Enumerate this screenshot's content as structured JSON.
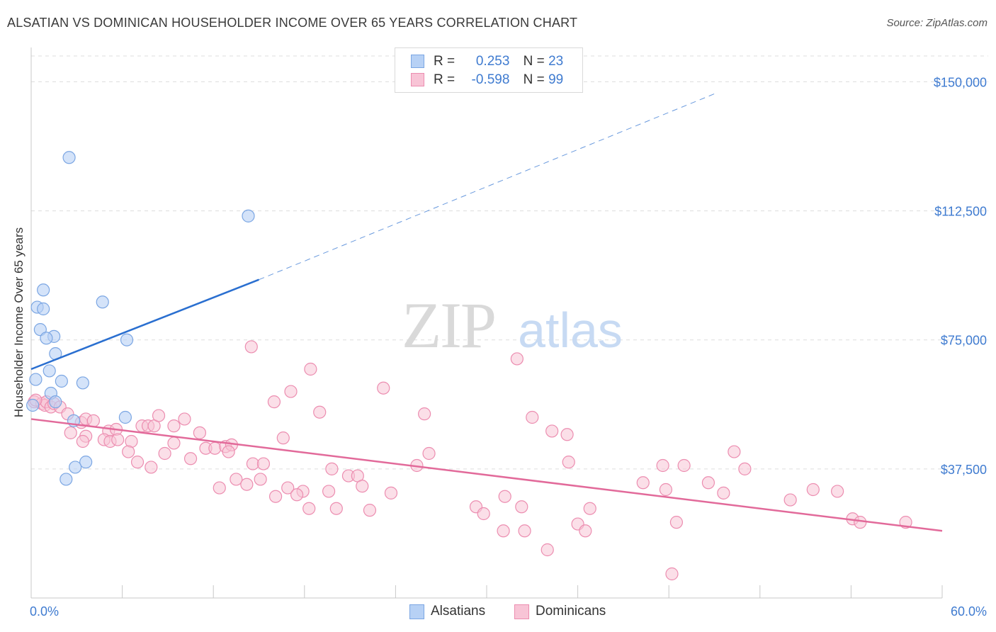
{
  "title": "ALSATIAN VS DOMINICAN HOUSEHOLDER INCOME OVER 65 YEARS CORRELATION CHART",
  "source": "Source: ZipAtlas.com",
  "watermark": {
    "zip": "ZIP",
    "atlas": "atlas"
  },
  "legend_top": {
    "series1": {
      "r_label": "R =",
      "r_value": "0.253",
      "n_label": "N =",
      "n_value": "23"
    },
    "series2": {
      "r_label": "R =",
      "r_value": "-0.598",
      "n_label": "N =",
      "n_value": "99"
    }
  },
  "legend_bottom": {
    "series1": "Alsatians",
    "series2": "Dominicans"
  },
  "colors": {
    "alsatian_fill": "#b7d1f5",
    "alsatian_stroke": "#7ba6e3",
    "alsatian_line": "#2a6fd0",
    "dominican_fill": "#f8c4d6",
    "dominican_stroke": "#ec8db0",
    "dominican_line": "#e26a9a",
    "tick_label": "#3f7bd0",
    "grid": "#dddddd"
  },
  "chart_data": {
    "type": "scatter",
    "title": "ALSATIAN VS DOMINICAN HOUSEHOLDER INCOME OVER 65 YEARS CORRELATION CHART",
    "xlabel": "",
    "ylabel": "Householder Income Over 65 years",
    "xlim": [
      0,
      60
    ],
    "ylim": [
      0,
      157500
    ],
    "x_tick_labels": [
      "0.0%",
      "60.0%"
    ],
    "y_ticks": [
      37500,
      75000,
      112500,
      150000
    ],
    "y_tick_labels": [
      "$37,500",
      "$75,000",
      "$112,500",
      "$150,000"
    ],
    "grid": true,
    "legend_position": "top-center",
    "series": [
      {
        "name": "Alsatians",
        "r": 0.253,
        "n": 23,
        "points": [
          [
            2.5,
            128000
          ],
          [
            14.3,
            111000
          ],
          [
            0.8,
            89500
          ],
          [
            4.7,
            86000
          ],
          [
            0.4,
            84500
          ],
          [
            0.8,
            84000
          ],
          [
            0.6,
            78000
          ],
          [
            1.5,
            76000
          ],
          [
            1.0,
            75500
          ],
          [
            6.3,
            75000
          ],
          [
            1.6,
            71000
          ],
          [
            1.2,
            66000
          ],
          [
            0.3,
            63500
          ],
          [
            2.0,
            63000
          ],
          [
            3.4,
            62500
          ],
          [
            1.3,
            59500
          ],
          [
            1.6,
            57000
          ],
          [
            0.1,
            56000
          ],
          [
            6.2,
            52500
          ],
          [
            2.8,
            51500
          ],
          [
            3.6,
            39500
          ],
          [
            2.9,
            38000
          ],
          [
            2.3,
            34500
          ]
        ],
        "trend": {
          "x": [
            0,
            15
          ],
          "y": [
            66500,
            92500
          ]
        },
        "trend_extension": {
          "x": [
            15,
            45
          ],
          "y": [
            92500,
            146500
          ]
        }
      },
      {
        "name": "Dominicans",
        "r": -0.598,
        "n": 99,
        "points": [
          [
            0.2,
            57000
          ],
          [
            0.7,
            56500
          ],
          [
            0.9,
            56000
          ],
          [
            1.0,
            57000
          ],
          [
            1.3,
            55500
          ],
          [
            1.5,
            56500
          ],
          [
            1.9,
            55500
          ],
          [
            2.4,
            53500
          ],
          [
            3.3,
            51000
          ],
          [
            3.6,
            52000
          ],
          [
            4.1,
            51500
          ],
          [
            2.6,
            48000
          ],
          [
            3.6,
            47000
          ],
          [
            5.1,
            48500
          ],
          [
            5.6,
            49000
          ],
          [
            4.8,
            46000
          ],
          [
            5.2,
            45500
          ],
          [
            5.7,
            46000
          ],
          [
            6.6,
            45500
          ],
          [
            7.3,
            50000
          ],
          [
            7.7,
            50000
          ],
          [
            8.1,
            50000
          ],
          [
            8.4,
            53000
          ],
          [
            9.4,
            50000
          ],
          [
            10.1,
            52000
          ],
          [
            11.1,
            48000
          ],
          [
            6.4,
            42500
          ],
          [
            7.0,
            39500
          ],
          [
            7.9,
            38000
          ],
          [
            8.8,
            42000
          ],
          [
            9.4,
            45000
          ],
          [
            10.5,
            40500
          ],
          [
            11.5,
            43500
          ],
          [
            12.1,
            43500
          ],
          [
            12.8,
            44000
          ],
          [
            13.2,
            44500
          ],
          [
            13.0,
            42500
          ],
          [
            14.6,
            39000
          ],
          [
            15.3,
            39000
          ],
          [
            13.5,
            34500
          ],
          [
            14.2,
            33000
          ],
          [
            15.1,
            34500
          ],
          [
            12.4,
            32000
          ],
          [
            16.1,
            29500
          ],
          [
            16.9,
            32000
          ],
          [
            17.9,
            31000
          ],
          [
            17.5,
            30000
          ],
          [
            18.3,
            26000
          ],
          [
            14.5,
            73000
          ],
          [
            16.0,
            57000
          ],
          [
            16.6,
            46500
          ],
          [
            17.1,
            60000
          ],
          [
            18.4,
            66500
          ],
          [
            19.0,
            54000
          ],
          [
            19.6,
            31000
          ],
          [
            20.1,
            26000
          ],
          [
            19.8,
            37500
          ],
          [
            20.9,
            35500
          ],
          [
            21.5,
            35500
          ],
          [
            21.8,
            32500
          ],
          [
            22.3,
            25500
          ],
          [
            23.2,
            61000
          ],
          [
            23.7,
            30500
          ],
          [
            25.4,
            38500
          ],
          [
            26.2,
            42000
          ],
          [
            25.9,
            53500
          ],
          [
            29.3,
            26500
          ],
          [
            29.8,
            24500
          ],
          [
            31.1,
            19500
          ],
          [
            31.2,
            29500
          ],
          [
            32.3,
            26500
          ],
          [
            32.0,
            69500
          ],
          [
            32.5,
            19500
          ],
          [
            33.0,
            52500
          ],
          [
            34.3,
            48500
          ],
          [
            35.3,
            47500
          ],
          [
            34.0,
            14000
          ],
          [
            35.4,
            39500
          ],
          [
            36.0,
            21500
          ],
          [
            36.5,
            19500
          ],
          [
            36.8,
            26000
          ],
          [
            40.3,
            33500
          ],
          [
            41.6,
            38500
          ],
          [
            41.8,
            31500
          ],
          [
            42.5,
            22000
          ],
          [
            43.0,
            38500
          ],
          [
            42.2,
            7000
          ],
          [
            44.6,
            33500
          ],
          [
            45.6,
            30500
          ],
          [
            46.3,
            42500
          ],
          [
            47.0,
            37500
          ],
          [
            50.0,
            28500
          ],
          [
            51.5,
            31500
          ],
          [
            53.1,
            31000
          ],
          [
            54.1,
            23000
          ],
          [
            54.6,
            22000
          ],
          [
            57.6,
            22000
          ],
          [
            0.3,
            57500
          ],
          [
            3.4,
            45500
          ]
        ],
        "trend": {
          "x": [
            0,
            60
          ],
          "y": [
            52000,
            19500
          ]
        }
      }
    ]
  }
}
